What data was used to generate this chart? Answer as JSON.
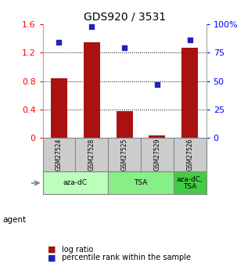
{
  "title": "GDS920 / 3531",
  "samples": [
    "GSM27524",
    "GSM27528",
    "GSM27525",
    "GSM27529",
    "GSM27526"
  ],
  "log_ratio": [
    0.84,
    1.35,
    0.38,
    0.03,
    1.27
  ],
  "percentile_rank": [
    84,
    98,
    79,
    47,
    86
  ],
  "bar_color": "#aa1111",
  "dot_color": "#2222bb",
  "ylim_left": [
    0,
    1.6
  ],
  "ylim_right": [
    0,
    100
  ],
  "yticks_left": [
    0,
    0.4,
    0.8,
    1.2,
    1.6
  ],
  "ytick_labels_left": [
    "0",
    "0.4",
    "0.8",
    "1.2",
    "1.6"
  ],
  "yticks_right": [
    0,
    25,
    50,
    75,
    100
  ],
  "ytick_labels_right": [
    "0",
    "25",
    "50",
    "75",
    "100%"
  ],
  "groups": [
    {
      "label": "aza-dC",
      "indices": [
        0,
        1
      ],
      "color": "#bbffbb"
    },
    {
      "label": "TSA",
      "indices": [
        2,
        3
      ],
      "color": "#88ee88"
    },
    {
      "label": "aza-dC,\nTSA",
      "indices": [
        4
      ],
      "color": "#44cc44"
    }
  ],
  "legend_items": [
    {
      "color": "#aa1111",
      "label": "log ratio"
    },
    {
      "color": "#2222bb",
      "label": "percentile rank within the sample"
    }
  ],
  "background_color": "#ffffff",
  "sample_box_color": "#cccccc"
}
